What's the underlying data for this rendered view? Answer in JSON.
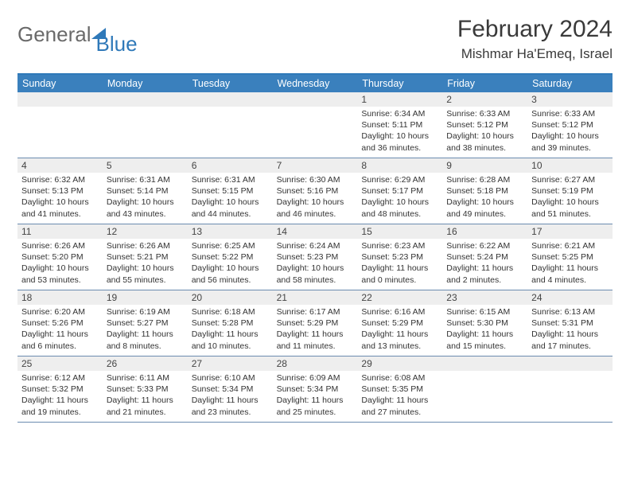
{
  "logo": {
    "part1": "General",
    "part2": "Blue"
  },
  "title": "February 2024",
  "location": "Mishmar Ha'Emeq, Israel",
  "colors": {
    "header_bar": "#3a80bd",
    "top_border": "#2f79b9",
    "daynum_bg": "#eeeeee",
    "week_border": "#6b8bb0",
    "logo_gray": "#6a6a6a",
    "logo_blue": "#2f79b9",
    "text": "#333333"
  },
  "day_names": [
    "Sunday",
    "Monday",
    "Tuesday",
    "Wednesday",
    "Thursday",
    "Friday",
    "Saturday"
  ],
  "weeks": [
    [
      {
        "day": "",
        "sunrise": "",
        "sunset": "",
        "daylight": ""
      },
      {
        "day": "",
        "sunrise": "",
        "sunset": "",
        "daylight": ""
      },
      {
        "day": "",
        "sunrise": "",
        "sunset": "",
        "daylight": ""
      },
      {
        "day": "",
        "sunrise": "",
        "sunset": "",
        "daylight": ""
      },
      {
        "day": "1",
        "sunrise": "Sunrise: 6:34 AM",
        "sunset": "Sunset: 5:11 PM",
        "daylight": "Daylight: 10 hours and 36 minutes."
      },
      {
        "day": "2",
        "sunrise": "Sunrise: 6:33 AM",
        "sunset": "Sunset: 5:12 PM",
        "daylight": "Daylight: 10 hours and 38 minutes."
      },
      {
        "day": "3",
        "sunrise": "Sunrise: 6:33 AM",
        "sunset": "Sunset: 5:12 PM",
        "daylight": "Daylight: 10 hours and 39 minutes."
      }
    ],
    [
      {
        "day": "4",
        "sunrise": "Sunrise: 6:32 AM",
        "sunset": "Sunset: 5:13 PM",
        "daylight": "Daylight: 10 hours and 41 minutes."
      },
      {
        "day": "5",
        "sunrise": "Sunrise: 6:31 AM",
        "sunset": "Sunset: 5:14 PM",
        "daylight": "Daylight: 10 hours and 43 minutes."
      },
      {
        "day": "6",
        "sunrise": "Sunrise: 6:31 AM",
        "sunset": "Sunset: 5:15 PM",
        "daylight": "Daylight: 10 hours and 44 minutes."
      },
      {
        "day": "7",
        "sunrise": "Sunrise: 6:30 AM",
        "sunset": "Sunset: 5:16 PM",
        "daylight": "Daylight: 10 hours and 46 minutes."
      },
      {
        "day": "8",
        "sunrise": "Sunrise: 6:29 AM",
        "sunset": "Sunset: 5:17 PM",
        "daylight": "Daylight: 10 hours and 48 minutes."
      },
      {
        "day": "9",
        "sunrise": "Sunrise: 6:28 AM",
        "sunset": "Sunset: 5:18 PM",
        "daylight": "Daylight: 10 hours and 49 minutes."
      },
      {
        "day": "10",
        "sunrise": "Sunrise: 6:27 AM",
        "sunset": "Sunset: 5:19 PM",
        "daylight": "Daylight: 10 hours and 51 minutes."
      }
    ],
    [
      {
        "day": "11",
        "sunrise": "Sunrise: 6:26 AM",
        "sunset": "Sunset: 5:20 PM",
        "daylight": "Daylight: 10 hours and 53 minutes."
      },
      {
        "day": "12",
        "sunrise": "Sunrise: 6:26 AM",
        "sunset": "Sunset: 5:21 PM",
        "daylight": "Daylight: 10 hours and 55 minutes."
      },
      {
        "day": "13",
        "sunrise": "Sunrise: 6:25 AM",
        "sunset": "Sunset: 5:22 PM",
        "daylight": "Daylight: 10 hours and 56 minutes."
      },
      {
        "day": "14",
        "sunrise": "Sunrise: 6:24 AM",
        "sunset": "Sunset: 5:23 PM",
        "daylight": "Daylight: 10 hours and 58 minutes."
      },
      {
        "day": "15",
        "sunrise": "Sunrise: 6:23 AM",
        "sunset": "Sunset: 5:23 PM",
        "daylight": "Daylight: 11 hours and 0 minutes."
      },
      {
        "day": "16",
        "sunrise": "Sunrise: 6:22 AM",
        "sunset": "Sunset: 5:24 PM",
        "daylight": "Daylight: 11 hours and 2 minutes."
      },
      {
        "day": "17",
        "sunrise": "Sunrise: 6:21 AM",
        "sunset": "Sunset: 5:25 PM",
        "daylight": "Daylight: 11 hours and 4 minutes."
      }
    ],
    [
      {
        "day": "18",
        "sunrise": "Sunrise: 6:20 AM",
        "sunset": "Sunset: 5:26 PM",
        "daylight": "Daylight: 11 hours and 6 minutes."
      },
      {
        "day": "19",
        "sunrise": "Sunrise: 6:19 AM",
        "sunset": "Sunset: 5:27 PM",
        "daylight": "Daylight: 11 hours and 8 minutes."
      },
      {
        "day": "20",
        "sunrise": "Sunrise: 6:18 AM",
        "sunset": "Sunset: 5:28 PM",
        "daylight": "Daylight: 11 hours and 10 minutes."
      },
      {
        "day": "21",
        "sunrise": "Sunrise: 6:17 AM",
        "sunset": "Sunset: 5:29 PM",
        "daylight": "Daylight: 11 hours and 11 minutes."
      },
      {
        "day": "22",
        "sunrise": "Sunrise: 6:16 AM",
        "sunset": "Sunset: 5:29 PM",
        "daylight": "Daylight: 11 hours and 13 minutes."
      },
      {
        "day": "23",
        "sunrise": "Sunrise: 6:15 AM",
        "sunset": "Sunset: 5:30 PM",
        "daylight": "Daylight: 11 hours and 15 minutes."
      },
      {
        "day": "24",
        "sunrise": "Sunrise: 6:13 AM",
        "sunset": "Sunset: 5:31 PM",
        "daylight": "Daylight: 11 hours and 17 minutes."
      }
    ],
    [
      {
        "day": "25",
        "sunrise": "Sunrise: 6:12 AM",
        "sunset": "Sunset: 5:32 PM",
        "daylight": "Daylight: 11 hours and 19 minutes."
      },
      {
        "day": "26",
        "sunrise": "Sunrise: 6:11 AM",
        "sunset": "Sunset: 5:33 PM",
        "daylight": "Daylight: 11 hours and 21 minutes."
      },
      {
        "day": "27",
        "sunrise": "Sunrise: 6:10 AM",
        "sunset": "Sunset: 5:34 PM",
        "daylight": "Daylight: 11 hours and 23 minutes."
      },
      {
        "day": "28",
        "sunrise": "Sunrise: 6:09 AM",
        "sunset": "Sunset: 5:34 PM",
        "daylight": "Daylight: 11 hours and 25 minutes."
      },
      {
        "day": "29",
        "sunrise": "Sunrise: 6:08 AM",
        "sunset": "Sunset: 5:35 PM",
        "daylight": "Daylight: 11 hours and 27 minutes."
      },
      {
        "day": "",
        "sunrise": "",
        "sunset": "",
        "daylight": ""
      },
      {
        "day": "",
        "sunrise": "",
        "sunset": "",
        "daylight": ""
      }
    ]
  ]
}
